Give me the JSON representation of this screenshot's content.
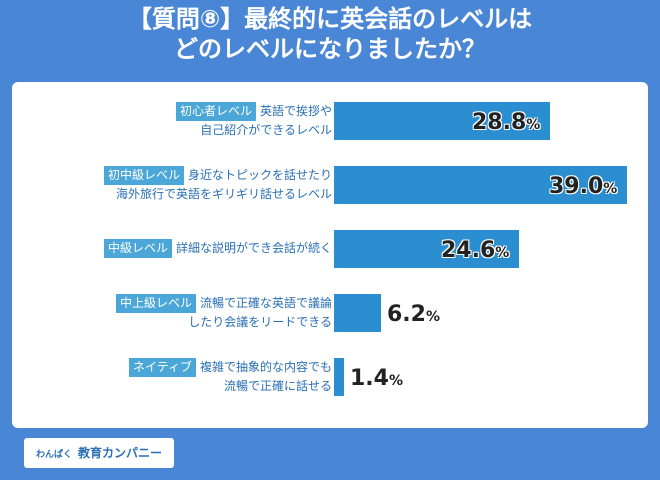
{
  "title": {
    "line1": "【質問⑧】最終的に英会話のレベルは",
    "line2": "どのレベルになりましたか？"
  },
  "chart_data": {
    "type": "bar",
    "orientation": "horizontal",
    "title": "【質問⑧】最終的に英会話のレベルは どのレベルになりましたか？",
    "unit": "%",
    "xlim": [
      0,
      40
    ],
    "items": [
      {
        "tag": "初心者レベル",
        "desc1": "英語で挨拶や",
        "desc2": "自己紹介ができるレベル",
        "value": 28.8,
        "value_label": "28.8",
        "pct": "%"
      },
      {
        "tag": "初中級レベル",
        "desc1": "身近なトピックを話せたり",
        "desc2": "海外旅行で英語をギリギリ話せるレベル",
        "value": 39.0,
        "value_label": "39.0",
        "pct": "%"
      },
      {
        "tag": "中級レベル",
        "desc1": "詳細な説明ができ会話が続く",
        "desc2": "",
        "value": 24.6,
        "value_label": "24.6",
        "pct": "%"
      },
      {
        "tag": "中上級レベル",
        "desc1": "流暢で正確な英語で議論",
        "desc2": "したり会議をリードできる",
        "value": 6.2,
        "value_label": "6.2",
        "pct": "%"
      },
      {
        "tag": "ネイティブ",
        "desc1": "複雑で抽象的な内容でも",
        "desc2": "流暢で正確に話せる",
        "value": 1.4,
        "value_label": "1.4",
        "pct": "%"
      }
    ]
  },
  "logo": {
    "small": "わんぱく",
    "main": "教育カンパニー"
  },
  "colors": {
    "background": "#4a86d6",
    "bar": "#2a8ed0",
    "tag": "#4aa7d8",
    "text": "#2a6fb5"
  }
}
